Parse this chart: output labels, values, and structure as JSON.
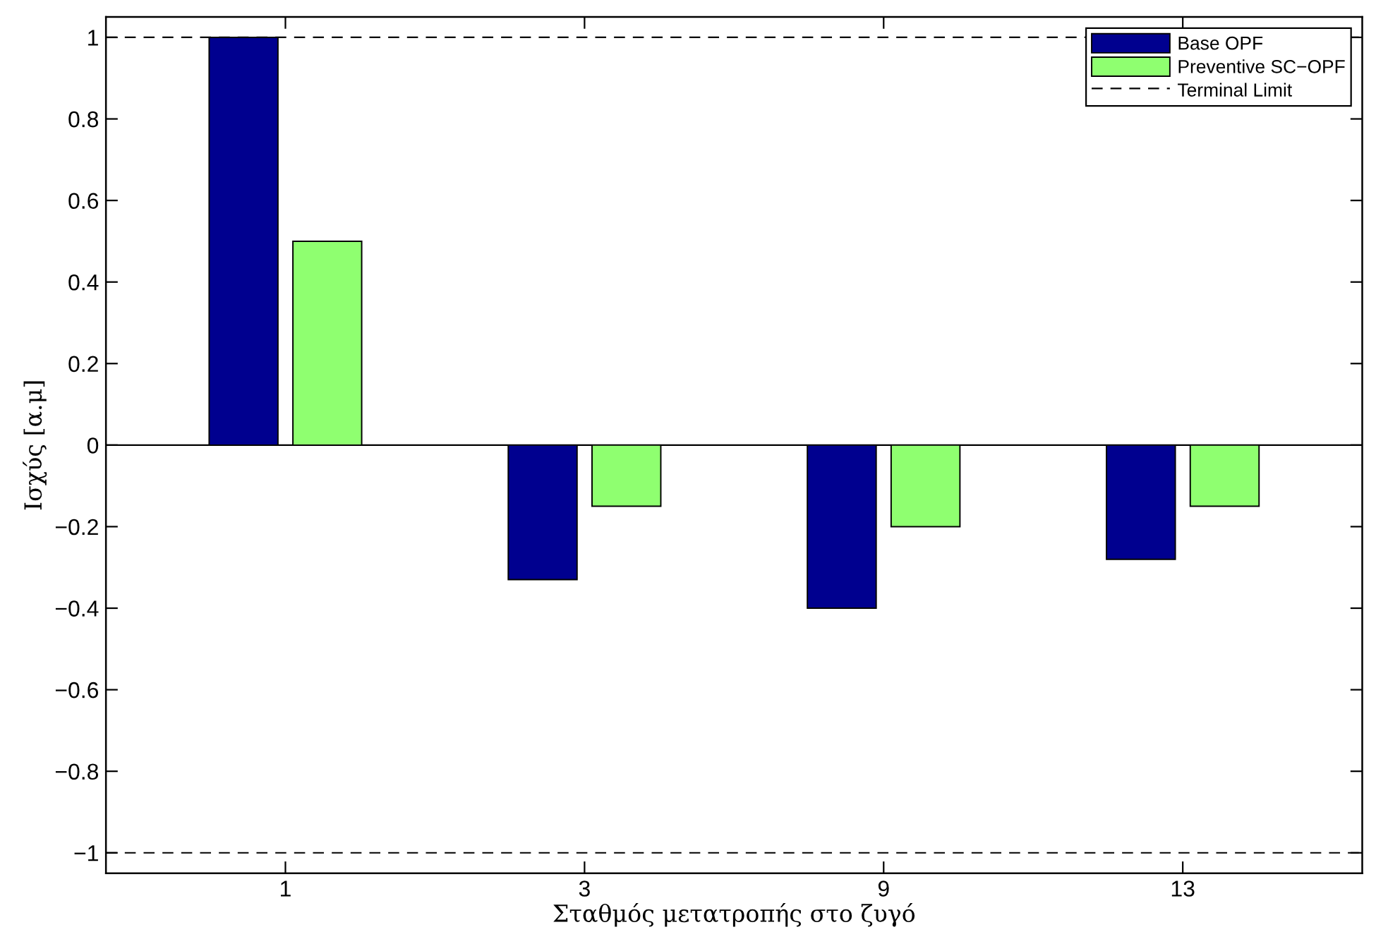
{
  "chart_data": {
    "type": "bar",
    "xlabel": "Σταθμός μετατροπής στο ζυγό",
    "ylabel": "Ισχύς [α.μ]",
    "categories": [
      "1",
      "3",
      "9",
      "13"
    ],
    "series": [
      {
        "name": "Base OPF",
        "color": "#00008f",
        "values": [
          1.0,
          -0.33,
          -0.4,
          -0.28
        ]
      },
      {
        "name": "Preventive SC−OPF",
        "color": "#8fff70",
        "values": [
          0.5,
          -0.15,
          -0.2,
          -0.15
        ]
      }
    ],
    "ylim": [
      -1.05,
      1.05
    ],
    "yticks": [
      {
        "value": -1,
        "label": "−1"
      },
      {
        "value": -0.8,
        "label": "−0.8"
      },
      {
        "value": -0.6,
        "label": "−0.6"
      },
      {
        "value": -0.4,
        "label": "−0.4"
      },
      {
        "value": -0.2,
        "label": "−0.2"
      },
      0,
      0.2,
      0.4,
      0.6,
      0.8,
      1
    ],
    "ref_lines": [
      {
        "axis": "y",
        "value": 1,
        "label": "Terminal Limit",
        "color": "#000000",
        "line_style": "dashed"
      },
      {
        "axis": "y",
        "value": -1,
        "color": "#000000",
        "line_style": "dashed"
      },
      {
        "axis": "y",
        "value": 0,
        "color": "#000000",
        "line_style": "solid"
      }
    ],
    "legend": "top right"
  }
}
